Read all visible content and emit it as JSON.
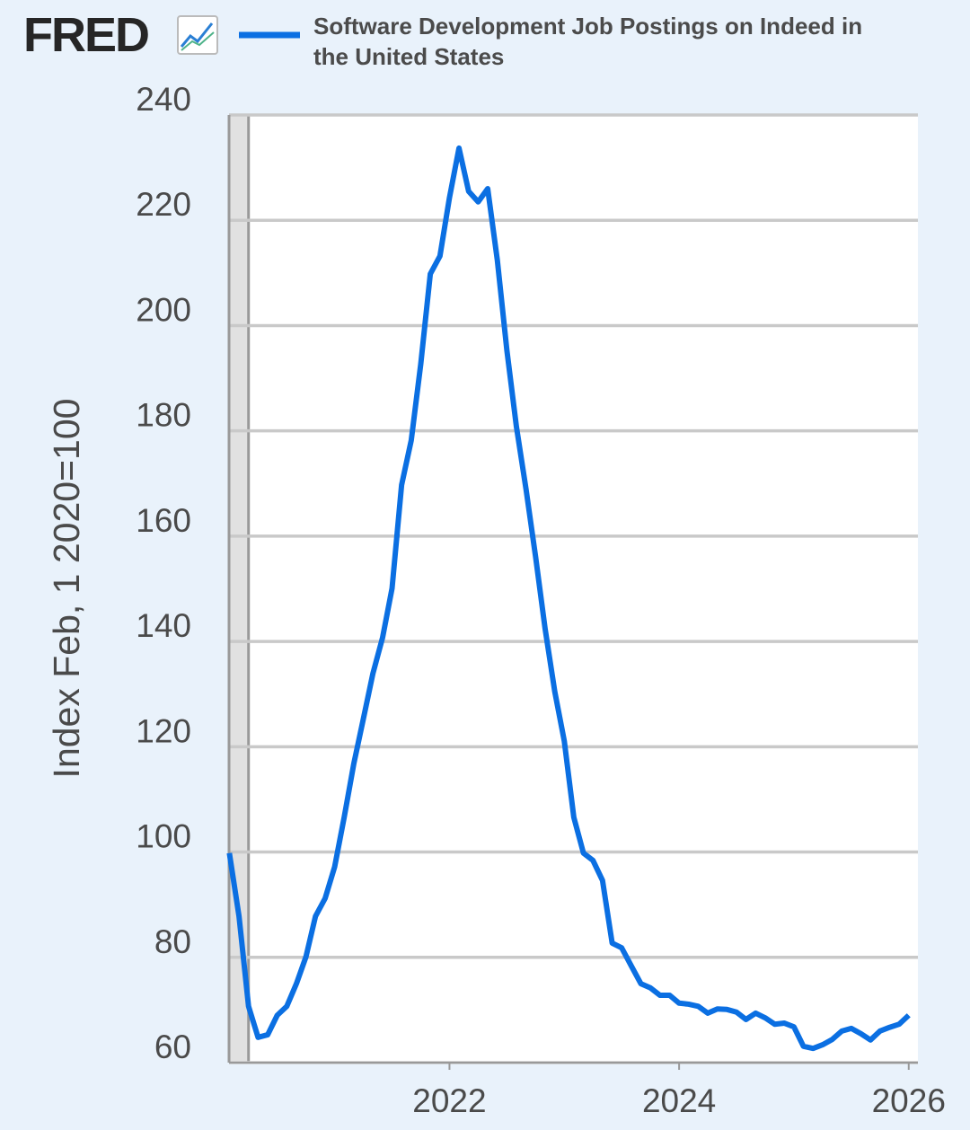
{
  "chart_data": {
    "type": "line",
    "logo": "FRED",
    "ylabel": "Index Feb, 1 2020=100",
    "xlim": [
      2020.08,
      2026.08
    ],
    "xticks": [
      2022,
      2024,
      2026
    ],
    "ylim": [
      60,
      240
    ],
    "yticks": [
      60,
      80,
      100,
      120,
      140,
      160,
      180,
      200,
      220,
      240
    ],
    "grid": true,
    "recessions": [
      [
        2020.08,
        2020.25
      ]
    ],
    "x": [
      2020.083,
      2020.167,
      2020.25,
      2020.333,
      2020.417,
      2020.5,
      2020.583,
      2020.667,
      2020.75,
      2020.833,
      2020.917,
      2021.0,
      2021.083,
      2021.167,
      2021.25,
      2021.333,
      2021.417,
      2021.5,
      2021.583,
      2021.667,
      2021.75,
      2021.833,
      2021.917,
      2022.0,
      2022.083,
      2022.167,
      2022.25,
      2022.333,
      2022.417,
      2022.5,
      2022.583,
      2022.667,
      2022.75,
      2022.833,
      2022.917,
      2023.0,
      2023.083,
      2023.167,
      2023.25,
      2023.333,
      2023.417,
      2023.5,
      2023.583,
      2023.667,
      2023.75,
      2023.833,
      2023.917,
      2024.0,
      2024.083,
      2024.167,
      2024.25,
      2024.333,
      2024.417,
      2024.5,
      2024.583,
      2024.667,
      2024.75,
      2024.833,
      2024.917,
      2025.0,
      2025.083,
      2025.167,
      2025.25,
      2025.333,
      2025.417,
      2025.5,
      2025.583,
      2025.667,
      2025.75,
      2025.833,
      2025.917,
      2026.0
    ],
    "series": [
      {
        "name": "Software Development Job Postings on Indeed in the United States",
        "color": "#0b6fe2",
        "values": [
          99.8,
          87.8,
          70.7,
          64.8,
          65.3,
          69.0,
          70.7,
          75.0,
          80.1,
          87.8,
          91.2,
          97.2,
          106.6,
          116.8,
          125.3,
          133.9,
          140.7,
          150.1,
          169.7,
          178.2,
          192.7,
          209.8,
          213.2,
          224.3,
          233.7,
          225.5,
          223.5,
          226.0,
          212.4,
          195.3,
          180.8,
          168.9,
          156.1,
          142.4,
          130.5,
          121.1,
          106.6,
          99.8,
          98.4,
          94.6,
          82.7,
          81.8,
          78.4,
          75.0,
          74.2,
          72.8,
          72.8,
          71.3,
          71.1,
          70.7,
          69.4,
          70.2,
          70.1,
          69.6,
          68.2,
          69.4,
          68.5,
          67.3,
          67.5,
          66.8,
          63.1,
          62.7,
          63.4,
          64.4,
          66.0,
          66.5,
          65.5,
          64.3,
          66.0,
          66.7,
          67.3,
          69.0
        ]
      }
    ]
  }
}
